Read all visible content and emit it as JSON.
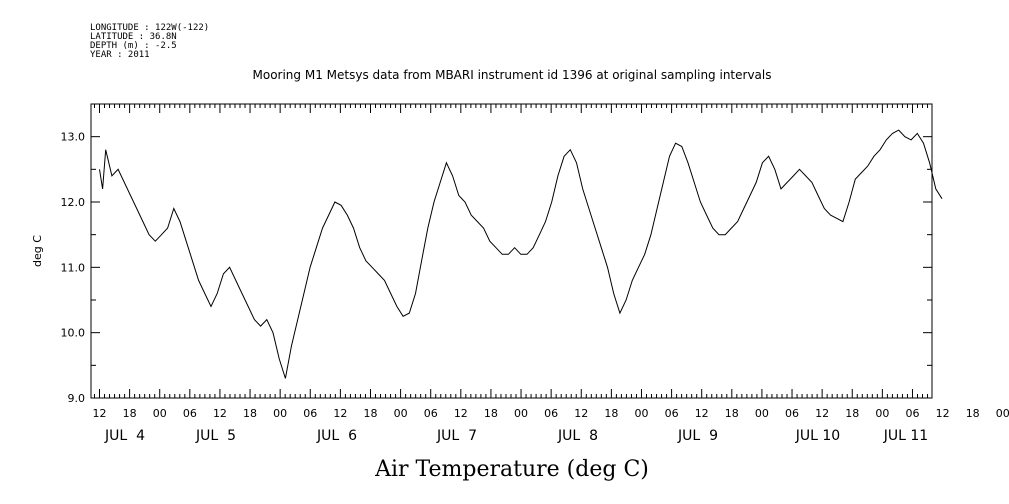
{
  "meta_lines": [
    "LONGITUDE : 122W(-122)",
    "LATITUDE : 36.8N",
    "DEPTH (m) : -2.5",
    "YEAR : 2011"
  ],
  "chart_data": {
    "type": "line",
    "title": "Mooring M1 Metsys data from MBARI instrument id 1396 at original sampling intervals",
    "xlabel": "Air Temperature (deg C)",
    "ylabel": "deg C",
    "ylim": [
      9.0,
      13.5
    ],
    "y_ticks": [
      "9.0",
      "10.0",
      "11.0",
      "12.0",
      "13.0"
    ],
    "x_hour_labels": [
      "12",
      "18",
      "00",
      "06",
      "12",
      "18",
      "00",
      "06",
      "12",
      "18",
      "00",
      "06",
      "12",
      "18",
      "00",
      "06",
      "12",
      "18",
      "00",
      "06",
      "12",
      "18",
      "00",
      "06",
      "12",
      "18",
      "00",
      "06",
      "12",
      "18",
      "00",
      "06"
    ],
    "day_labels": [
      "JUL  4",
      "JUL  5",
      "JUL  6",
      "JUL  7",
      "JUL  8",
      "JUL  9",
      "JUL 10",
      "JUL 11"
    ],
    "series": [
      {
        "points": [
          [
            0,
            12.5
          ],
          [
            0.5,
            12.2
          ],
          [
            1,
            12.8
          ],
          [
            1.5,
            12.6
          ],
          [
            2,
            12.4
          ],
          [
            3,
            12.5
          ],
          [
            4,
            12.3
          ],
          [
            5,
            12.1
          ],
          [
            6,
            11.9
          ],
          [
            7,
            11.7
          ],
          [
            8,
            11.5
          ],
          [
            9,
            11.4
          ],
          [
            10,
            11.5
          ],
          [
            11,
            11.6
          ],
          [
            12,
            11.9
          ],
          [
            13,
            11.7
          ],
          [
            14,
            11.4
          ],
          [
            15,
            11.1
          ],
          [
            16,
            10.8
          ],
          [
            17,
            10.6
          ],
          [
            18,
            10.4
          ],
          [
            19,
            10.6
          ],
          [
            20,
            10.9
          ],
          [
            21,
            11.0
          ],
          [
            22,
            10.8
          ],
          [
            23,
            10.6
          ],
          [
            24,
            10.4
          ],
          [
            25,
            10.2
          ],
          [
            26,
            10.1
          ],
          [
            27,
            10.2
          ],
          [
            28,
            10.0
          ],
          [
            29,
            9.6
          ],
          [
            30,
            9.3
          ],
          [
            31,
            9.8
          ],
          [
            32,
            10.2
          ],
          [
            33,
            10.6
          ],
          [
            34,
            11.0
          ],
          [
            35,
            11.3
          ],
          [
            36,
            11.6
          ],
          [
            37,
            11.8
          ],
          [
            38,
            12.0
          ],
          [
            39,
            11.95
          ],
          [
            40,
            11.8
          ],
          [
            41,
            11.6
          ],
          [
            42,
            11.3
          ],
          [
            43,
            11.1
          ],
          [
            44,
            11.0
          ],
          [
            45,
            10.9
          ],
          [
            46,
            10.8
          ],
          [
            47,
            10.6
          ],
          [
            48,
            10.4
          ],
          [
            49,
            10.25
          ],
          [
            50,
            10.3
          ],
          [
            51,
            10.6
          ],
          [
            52,
            11.1
          ],
          [
            53,
            11.6
          ],
          [
            54,
            12.0
          ],
          [
            55,
            12.3
          ],
          [
            56,
            12.6
          ],
          [
            57,
            12.4
          ],
          [
            58,
            12.1
          ],
          [
            59,
            12.0
          ],
          [
            60,
            11.8
          ],
          [
            61,
            11.7
          ],
          [
            62,
            11.6
          ],
          [
            63,
            11.4
          ],
          [
            64,
            11.3
          ],
          [
            65,
            11.2
          ],
          [
            66,
            11.2
          ],
          [
            67,
            11.3
          ],
          [
            68,
            11.2
          ],
          [
            69,
            11.2
          ],
          [
            70,
            11.3
          ],
          [
            71,
            11.5
          ],
          [
            72,
            11.7
          ],
          [
            73,
            12.0
          ],
          [
            74,
            12.4
          ],
          [
            75,
            12.7
          ],
          [
            76,
            12.8
          ],
          [
            77,
            12.6
          ],
          [
            78,
            12.2
          ],
          [
            79,
            11.9
          ],
          [
            80,
            11.6
          ],
          [
            81,
            11.3
          ],
          [
            82,
            11.0
          ],
          [
            83,
            10.6
          ],
          [
            84,
            10.3
          ],
          [
            85,
            10.5
          ],
          [
            86,
            10.8
          ],
          [
            87,
            11.0
          ],
          [
            88,
            11.2
          ],
          [
            89,
            11.5
          ],
          [
            90,
            11.9
          ],
          [
            91,
            12.3
          ],
          [
            92,
            12.7
          ],
          [
            93,
            12.9
          ],
          [
            94,
            12.85
          ],
          [
            95,
            12.6
          ],
          [
            96,
            12.3
          ],
          [
            97,
            12.0
          ],
          [
            98,
            11.8
          ],
          [
            99,
            11.6
          ],
          [
            100,
            11.5
          ],
          [
            101,
            11.5
          ],
          [
            102,
            11.6
          ],
          [
            103,
            11.7
          ],
          [
            104,
            11.9
          ],
          [
            105,
            12.1
          ],
          [
            106,
            12.3
          ],
          [
            107,
            12.6
          ],
          [
            108,
            12.7
          ],
          [
            109,
            12.5
          ],
          [
            110,
            12.2
          ],
          [
            111,
            12.3
          ],
          [
            112,
            12.4
          ],
          [
            113,
            12.5
          ],
          [
            114,
            12.4
          ],
          [
            115,
            12.3
          ],
          [
            116,
            12.1
          ],
          [
            117,
            11.9
          ],
          [
            118,
            11.8
          ],
          [
            119,
            11.75
          ],
          [
            120,
            11.7
          ],
          [
            121,
            12.0
          ],
          [
            122,
            12.35
          ],
          [
            123,
            12.45
          ],
          [
            124,
            12.55
          ],
          [
            125,
            12.7
          ],
          [
            126,
            12.8
          ],
          [
            127,
            12.95
          ],
          [
            128,
            13.05
          ],
          [
            129,
            13.1
          ],
          [
            130,
            13.0
          ],
          [
            131,
            12.95
          ],
          [
            132,
            13.05
          ],
          [
            133,
            12.9
          ],
          [
            134,
            12.6
          ],
          [
            135,
            12.2
          ],
          [
            136,
            12.05
          ]
        ]
      }
    ]
  }
}
